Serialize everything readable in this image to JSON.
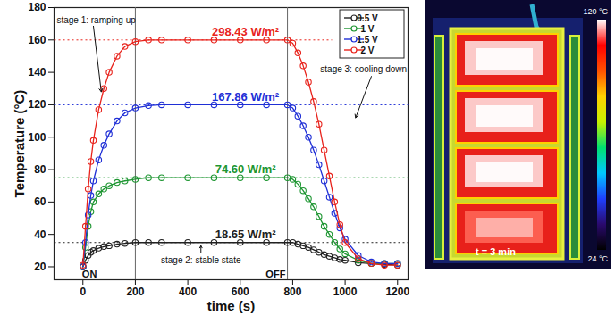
{
  "chart_data": [
    {
      "type": "line",
      "x_label": "time (s)",
      "y_label": "Temperature (°C)",
      "xlim": [
        -110,
        1240
      ],
      "xticks": [
        0,
        200,
        400,
        600,
        800,
        1000,
        1200
      ],
      "ylim": [
        12,
        180
      ],
      "yticks": [
        20,
        40,
        60,
        80,
        100,
        120,
        140,
        160,
        180
      ],
      "grid": false,
      "legend": "top-right",
      "x": [
        0,
        10,
        20,
        30,
        40,
        60,
        80,
        100,
        130,
        160,
        200,
        250,
        300,
        400,
        500,
        600,
        700,
        780,
        800,
        820,
        840,
        860,
        880,
        900,
        920,
        940,
        960,
        980,
        1000,
        1050,
        1100,
        1150,
        1200
      ],
      "series": [
        {
          "name": "0.5 V",
          "color": "#222222",
          "marker": "circle",
          "line_style": "solid",
          "values": [
            20,
            24,
            27,
            29,
            30,
            31.5,
            32.5,
            33,
            34,
            34.5,
            35,
            35,
            35,
            35,
            35,
            35,
            35,
            35,
            35,
            34,
            33,
            32,
            30.5,
            29,
            27.5,
            26.5,
            25.5,
            24.5,
            24,
            22.5,
            22,
            21.5,
            21
          ]
        },
        {
          "name": "1 V",
          "color": "#1e9632",
          "marker": "circle",
          "line_style": "solid",
          "values": [
            20,
            32,
            45,
            54,
            60,
            65,
            68,
            70,
            72,
            73,
            74,
            75,
            75,
            75,
            75,
            75,
            75,
            75,
            74,
            71,
            67,
            62,
            57,
            51,
            45,
            40,
            35,
            31,
            28,
            24,
            22,
            22,
            22
          ]
        },
        {
          "name": "1.5 V",
          "color": "#1f2fd6",
          "marker": "circle",
          "line_style": "solid",
          "values": [
            20,
            35,
            52,
            64,
            73,
            86,
            95,
            102,
            110,
            115,
            118,
            119.5,
            120,
            120,
            120,
            120,
            120,
            120,
            118,
            113,
            107,
            100,
            92,
            83,
            73,
            63,
            53,
            44,
            37,
            27,
            23,
            22,
            22
          ]
        },
        {
          "name": "2 V",
          "color": "#e8231c",
          "marker": "circle",
          "line_style": "solid",
          "values": [
            21,
            45,
            68,
            85,
            98,
            117,
            130,
            140,
            150,
            156,
            159,
            160,
            160,
            160,
            160,
            160,
            160,
            160,
            158,
            152,
            144,
            134,
            122,
            108,
            92,
            76,
            60,
            46,
            35,
            25,
            22,
            21,
            21
          ]
        }
      ],
      "reference_lines": [
        {
          "y": 160,
          "label": "298.43 W/m²",
          "color": "#e8231c",
          "xspan": [
            -110,
            950
          ],
          "label_x": 620
        },
        {
          "y": 120,
          "label": "167.86 W/m²",
          "color": "#1f2fd6",
          "xspan": [
            -110,
            1240
          ],
          "label_x": 620
        },
        {
          "y": 75,
          "label": "74.60 W/m²",
          "color": "#1e9632",
          "xspan": [
            -110,
            1240
          ],
          "label_x": 620
        },
        {
          "y": 35,
          "label": "18.65 W/m²",
          "color": "#222222",
          "xspan": [
            -110,
            1240
          ],
          "label_x": 620
        }
      ],
      "stage_boundaries": [
        200,
        780
      ],
      "annotations": [
        {
          "text": "stage 1: ramping up",
          "x": -100,
          "y": 172,
          "arrow_from": [
            40,
            168.5
          ],
          "arrow_to": [
            70,
            128
          ]
        },
        {
          "text": "stage 2: stable state",
          "x": 450,
          "y": 24,
          "arrow_from": [
            450,
            28.5
          ],
          "arrow_to": [
            450,
            33
          ]
        },
        {
          "text": "stage 3: cooling down",
          "x": 1235,
          "y": 142,
          "arrow_from": [
            1100,
            137.5
          ],
          "arrow_to": [
            1040,
            112
          ]
        },
        {
          "text": "ON",
          "x": 25,
          "y": 15.5
        },
        {
          "text": "OFF",
          "x": 735,
          "y": 15.5
        }
      ]
    },
    {
      "type": "thermal_image",
      "label": "t = 3 min",
      "colorbar_range": [
        24,
        120
      ],
      "colorbar_ticks": [
        {
          "value": 120,
          "label": "120 °C"
        },
        {
          "value": 24,
          "label": "24 °C"
        }
      ]
    }
  ]
}
